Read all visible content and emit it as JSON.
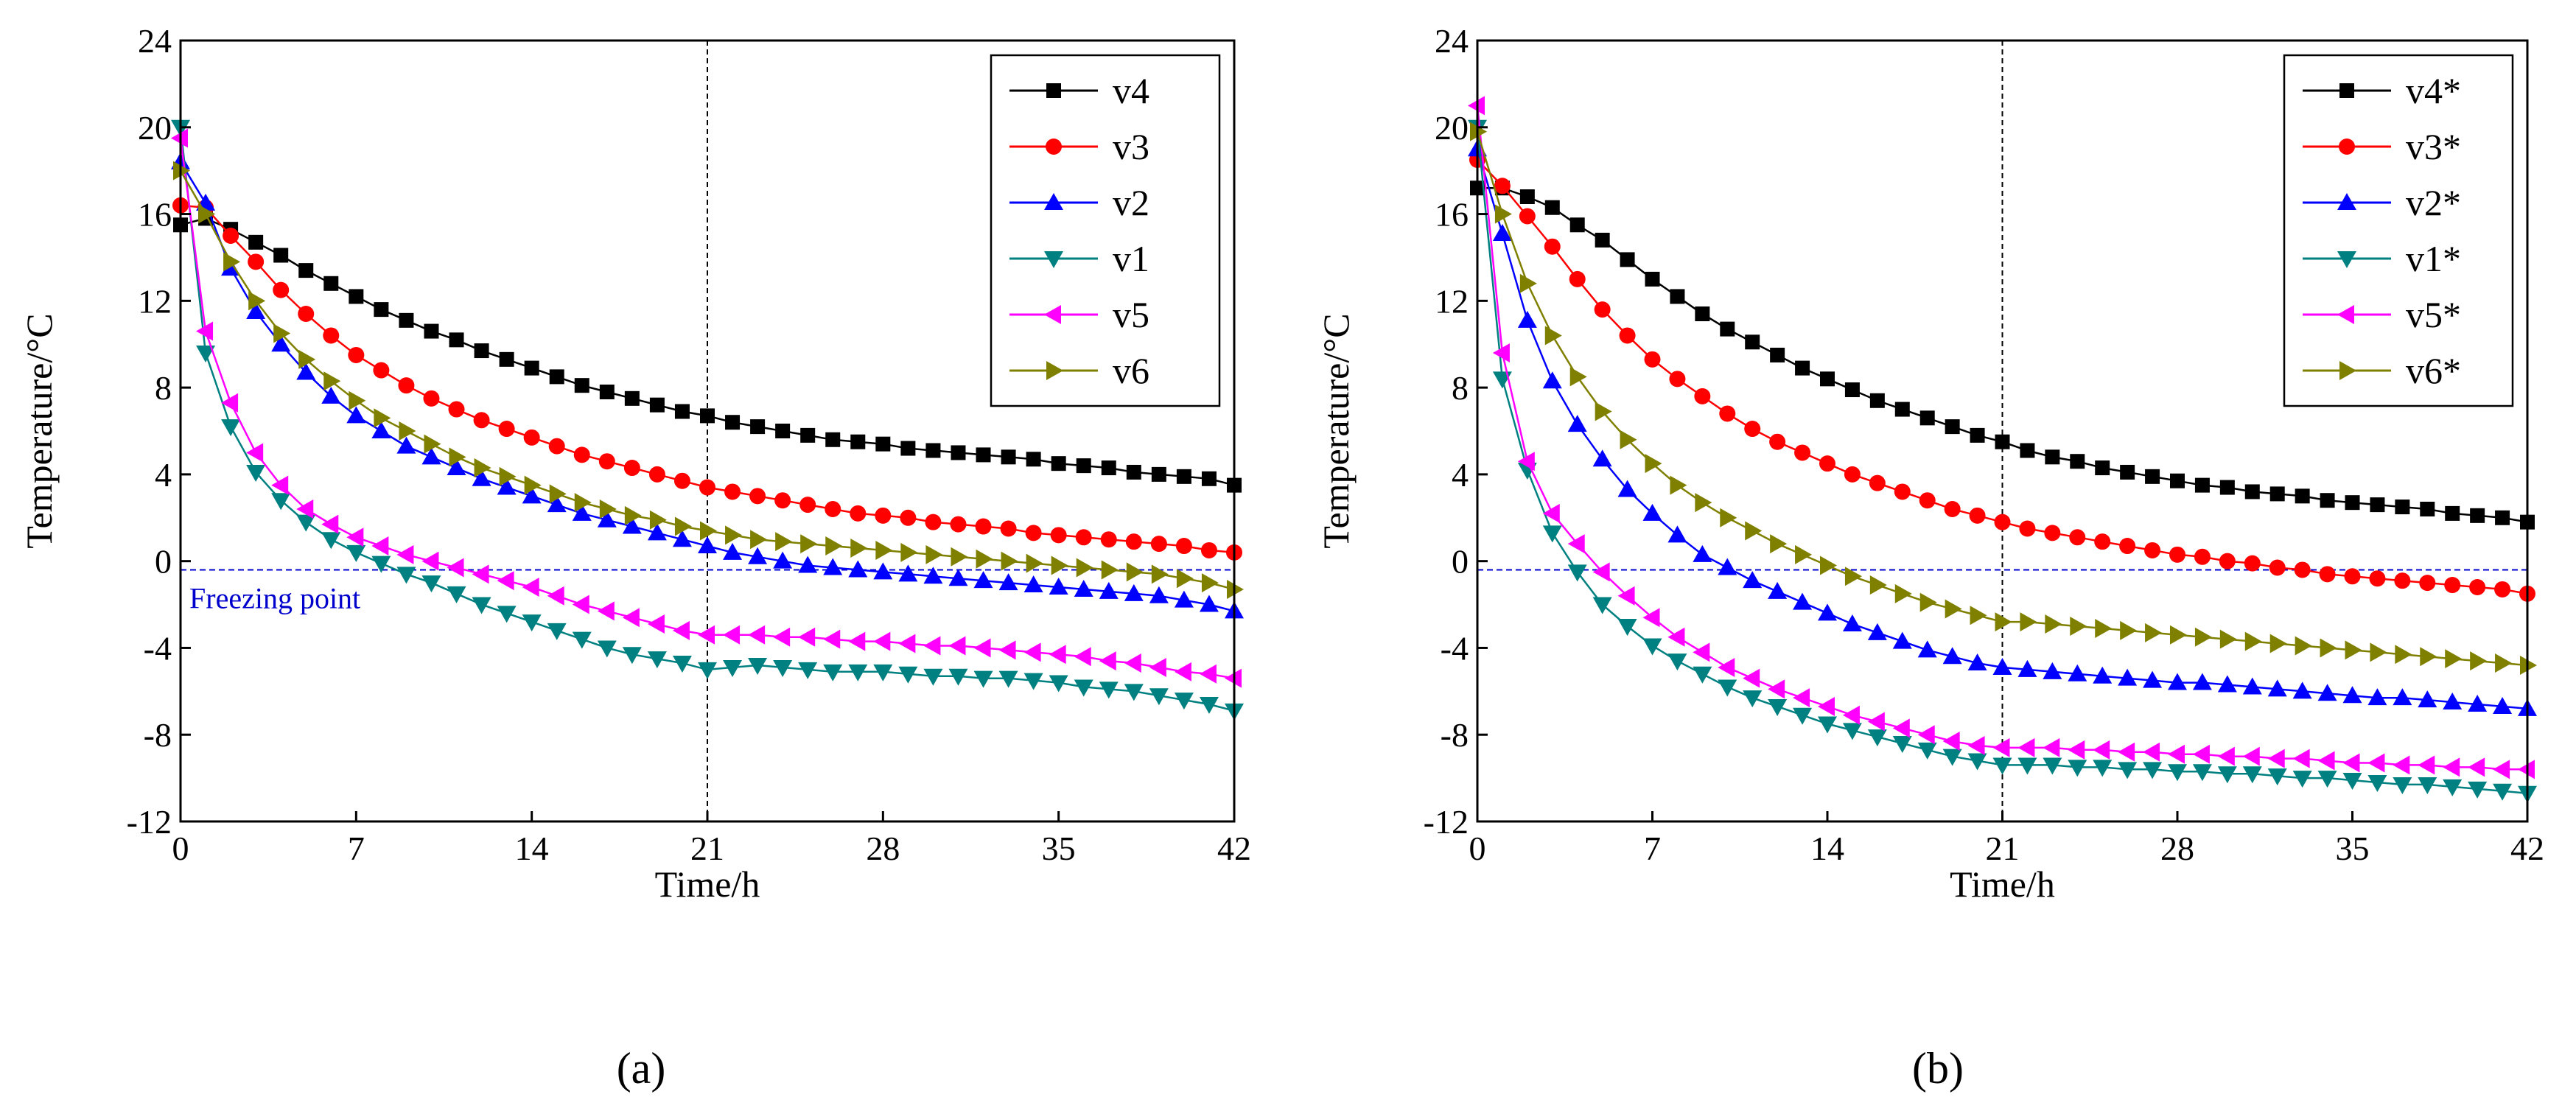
{
  "colors": {
    "v4": "#000000",
    "v3": "#ff0000",
    "v2": "#0000ff",
    "v1": "#008080",
    "v5": "#ff00ff",
    "v6": "#808000",
    "freezing_line": "#0000cc",
    "ref_line": "#000000"
  },
  "panel_labels": [
    "(a)",
    "(b)"
  ],
  "chart_data": [
    {
      "type": "line",
      "xlabel": "Time/h",
      "ylabel": "Temperature/°C",
      "xlim": [
        0,
        42
      ],
      "ylim": [
        -12,
        24
      ],
      "xticks": [
        0,
        7,
        14,
        21,
        28,
        35,
        42
      ],
      "yticks": [
        -12,
        -8,
        -4,
        0,
        4,
        8,
        12,
        16,
        20,
        24
      ],
      "reference_line_x": 21,
      "freezing_point_y": -0.4,
      "freezing_label": "Freezing point",
      "legend_position": "top-right",
      "x": [
        0,
        1,
        2,
        3,
        4,
        5,
        6,
        7,
        8,
        9,
        10,
        11,
        12,
        13,
        14,
        15,
        16,
        17,
        18,
        19,
        20,
        21,
        22,
        23,
        24,
        25,
        26,
        27,
        28,
        29,
        30,
        31,
        32,
        33,
        34,
        35,
        36,
        37,
        38,
        39,
        40,
        41,
        42
      ],
      "series": [
        {
          "name": "v4",
          "key": "v4",
          "marker": "square",
          "values": [
            15.5,
            15.8,
            15.3,
            14.7,
            14.1,
            13.4,
            12.8,
            12.2,
            11.6,
            11.1,
            10.6,
            10.2,
            9.7,
            9.3,
            8.9,
            8.5,
            8.1,
            7.8,
            7.5,
            7.2,
            6.9,
            6.7,
            6.4,
            6.2,
            6.0,
            5.8,
            5.6,
            5.5,
            5.4,
            5.2,
            5.1,
            5.0,
            4.9,
            4.8,
            4.7,
            4.5,
            4.4,
            4.3,
            4.1,
            4.0,
            3.9,
            3.8,
            3.5
          ]
        },
        {
          "name": "v3",
          "key": "v3",
          "marker": "circle",
          "values": [
            16.4,
            16.3,
            15.0,
            13.8,
            12.5,
            11.4,
            10.4,
            9.5,
            8.8,
            8.1,
            7.5,
            7.0,
            6.5,
            6.1,
            5.7,
            5.3,
            4.9,
            4.6,
            4.3,
            4.0,
            3.7,
            3.4,
            3.2,
            3.0,
            2.8,
            2.6,
            2.4,
            2.2,
            2.1,
            2.0,
            1.8,
            1.7,
            1.6,
            1.5,
            1.3,
            1.2,
            1.1,
            1.0,
            0.9,
            0.8,
            0.7,
            0.5,
            0.4
          ]
        },
        {
          "name": "v2",
          "key": "v2",
          "marker": "triangle-up",
          "values": [
            18.4,
            16.5,
            13.5,
            11.5,
            10.0,
            8.7,
            7.6,
            6.7,
            6.0,
            5.3,
            4.8,
            4.3,
            3.8,
            3.4,
            3.0,
            2.6,
            2.2,
            1.9,
            1.6,
            1.3,
            1.0,
            0.7,
            0.4,
            0.2,
            0.0,
            -0.2,
            -0.3,
            -0.4,
            -0.5,
            -0.6,
            -0.7,
            -0.8,
            -0.9,
            -1.0,
            -1.1,
            -1.2,
            -1.3,
            -1.4,
            -1.5,
            -1.6,
            -1.8,
            -2.0,
            -2.3
          ]
        },
        {
          "name": "v1",
          "key": "v1",
          "marker": "triangle-down",
          "values": [
            20.0,
            9.6,
            6.2,
            4.1,
            2.8,
            1.8,
            1.0,
            0.4,
            -0.1,
            -0.6,
            -1.0,
            -1.5,
            -2.0,
            -2.4,
            -2.8,
            -3.2,
            -3.6,
            -4.0,
            -4.3,
            -4.5,
            -4.7,
            -5.0,
            -4.9,
            -4.8,
            -4.9,
            -5.0,
            -5.1,
            -5.1,
            -5.1,
            -5.2,
            -5.3,
            -5.3,
            -5.4,
            -5.4,
            -5.5,
            -5.6,
            -5.8,
            -5.9,
            -6.0,
            -6.2,
            -6.4,
            -6.6,
            -6.9
          ]
        },
        {
          "name": "v5",
          "key": "v5",
          "marker": "triangle-left",
          "values": [
            19.5,
            10.6,
            7.3,
            5.0,
            3.5,
            2.4,
            1.7,
            1.1,
            0.7,
            0.3,
            0.0,
            -0.3,
            -0.6,
            -0.9,
            -1.2,
            -1.6,
            -2.0,
            -2.3,
            -2.6,
            -2.9,
            -3.2,
            -3.4,
            -3.4,
            -3.4,
            -3.5,
            -3.5,
            -3.6,
            -3.7,
            -3.7,
            -3.8,
            -3.9,
            -3.9,
            -4.0,
            -4.1,
            -4.2,
            -4.3,
            -4.4,
            -4.6,
            -4.7,
            -4.9,
            -5.1,
            -5.2,
            -5.4
          ]
        },
        {
          "name": "v6",
          "key": "v6",
          "marker": "triangle-right",
          "values": [
            18.0,
            16.0,
            13.8,
            12.0,
            10.5,
            9.3,
            8.3,
            7.4,
            6.6,
            6.0,
            5.4,
            4.8,
            4.3,
            3.9,
            3.5,
            3.1,
            2.7,
            2.4,
            2.1,
            1.9,
            1.6,
            1.4,
            1.2,
            1.0,
            0.9,
            0.8,
            0.7,
            0.6,
            0.5,
            0.4,
            0.3,
            0.2,
            0.1,
            0.0,
            -0.1,
            -0.2,
            -0.3,
            -0.4,
            -0.5,
            -0.6,
            -0.8,
            -1.0,
            -1.3
          ]
        }
      ]
    },
    {
      "type": "line",
      "xlabel": "Time/h",
      "ylabel": "Temperature/°C",
      "xlim": [
        0,
        42
      ],
      "ylim": [
        -12,
        24
      ],
      "xticks": [
        0,
        7,
        14,
        21,
        28,
        35,
        42
      ],
      "yticks": [
        -12,
        -8,
        -4,
        0,
        4,
        8,
        12,
        16,
        20,
        24
      ],
      "reference_line_x": 21,
      "freezing_point_y": -0.4,
      "freezing_label": "",
      "legend_position": "top-right",
      "x": [
        0,
        1,
        2,
        3,
        4,
        5,
        6,
        7,
        8,
        9,
        10,
        11,
        12,
        13,
        14,
        15,
        16,
        17,
        18,
        19,
        20,
        21,
        22,
        23,
        24,
        25,
        26,
        27,
        28,
        29,
        30,
        31,
        32,
        33,
        34,
        35,
        36,
        37,
        38,
        39,
        40,
        41,
        42
      ],
      "series": [
        {
          "name": "v4*",
          "key": "v4",
          "marker": "square",
          "values": [
            17.2,
            17.2,
            16.8,
            16.3,
            15.5,
            14.8,
            13.9,
            13.0,
            12.2,
            11.4,
            10.7,
            10.1,
            9.5,
            8.9,
            8.4,
            7.9,
            7.4,
            7.0,
            6.6,
            6.2,
            5.8,
            5.5,
            5.1,
            4.8,
            4.6,
            4.3,
            4.1,
            3.9,
            3.7,
            3.5,
            3.4,
            3.2,
            3.1,
            3.0,
            2.8,
            2.7,
            2.6,
            2.5,
            2.4,
            2.2,
            2.1,
            2.0,
            1.8
          ]
        },
        {
          "name": "v3*",
          "key": "v3",
          "marker": "circle",
          "values": [
            18.5,
            17.3,
            15.9,
            14.5,
            13.0,
            11.6,
            10.4,
            9.3,
            8.4,
            7.6,
            6.8,
            6.1,
            5.5,
            5.0,
            4.5,
            4.0,
            3.6,
            3.2,
            2.8,
            2.4,
            2.1,
            1.8,
            1.5,
            1.3,
            1.1,
            0.9,
            0.7,
            0.5,
            0.3,
            0.2,
            0.0,
            -0.1,
            -0.3,
            -0.4,
            -0.6,
            -0.7,
            -0.8,
            -0.9,
            -1.0,
            -1.1,
            -1.2,
            -1.3,
            -1.5
          ]
        },
        {
          "name": "v2*",
          "key": "v2",
          "marker": "triangle-up",
          "values": [
            19.0,
            15.1,
            11.1,
            8.3,
            6.3,
            4.7,
            3.3,
            2.2,
            1.2,
            0.3,
            -0.3,
            -0.9,
            -1.4,
            -1.9,
            -2.4,
            -2.9,
            -3.3,
            -3.7,
            -4.1,
            -4.4,
            -4.7,
            -4.9,
            -5.0,
            -5.1,
            -5.2,
            -5.3,
            -5.4,
            -5.5,
            -5.6,
            -5.6,
            -5.7,
            -5.8,
            -5.9,
            -6.0,
            -6.1,
            -6.2,
            -6.3,
            -6.3,
            -6.4,
            -6.5,
            -6.6,
            -6.7,
            -6.8
          ]
        },
        {
          "name": "v1*",
          "key": "v1",
          "marker": "triangle-down",
          "values": [
            20.0,
            8.4,
            4.2,
            1.3,
            -0.5,
            -2.0,
            -3.0,
            -3.9,
            -4.6,
            -5.2,
            -5.8,
            -6.3,
            -6.7,
            -7.1,
            -7.5,
            -7.8,
            -8.1,
            -8.4,
            -8.7,
            -9.0,
            -9.2,
            -9.4,
            -9.4,
            -9.4,
            -9.5,
            -9.5,
            -9.6,
            -9.6,
            -9.7,
            -9.7,
            -9.8,
            -9.8,
            -9.9,
            -10.0,
            -10.0,
            -10.1,
            -10.2,
            -10.3,
            -10.3,
            -10.4,
            -10.5,
            -10.6,
            -10.7
          ]
        },
        {
          "name": "v5*",
          "key": "v5",
          "marker": "triangle-left",
          "values": [
            21.0,
            9.6,
            4.6,
            2.2,
            0.8,
            -0.5,
            -1.6,
            -2.6,
            -3.5,
            -4.2,
            -4.9,
            -5.4,
            -5.9,
            -6.3,
            -6.7,
            -7.1,
            -7.4,
            -7.7,
            -8.0,
            -8.3,
            -8.5,
            -8.6,
            -8.6,
            -8.6,
            -8.7,
            -8.7,
            -8.8,
            -8.8,
            -8.9,
            -8.9,
            -9.0,
            -9.0,
            -9.1,
            -9.1,
            -9.2,
            -9.3,
            -9.3,
            -9.4,
            -9.4,
            -9.5,
            -9.5,
            -9.6,
            -9.6
          ]
        },
        {
          "name": "v6*",
          "key": "v6",
          "marker": "triangle-right",
          "values": [
            19.8,
            16.0,
            12.8,
            10.4,
            8.5,
            6.9,
            5.6,
            4.5,
            3.5,
            2.7,
            2.0,
            1.4,
            0.8,
            0.3,
            -0.2,
            -0.7,
            -1.1,
            -1.5,
            -1.9,
            -2.2,
            -2.5,
            -2.8,
            -2.8,
            -2.9,
            -3.0,
            -3.1,
            -3.2,
            -3.3,
            -3.4,
            -3.5,
            -3.6,
            -3.7,
            -3.8,
            -3.9,
            -4.0,
            -4.1,
            -4.2,
            -4.3,
            -4.4,
            -4.5,
            -4.6,
            -4.7,
            -4.8
          ]
        }
      ]
    }
  ]
}
